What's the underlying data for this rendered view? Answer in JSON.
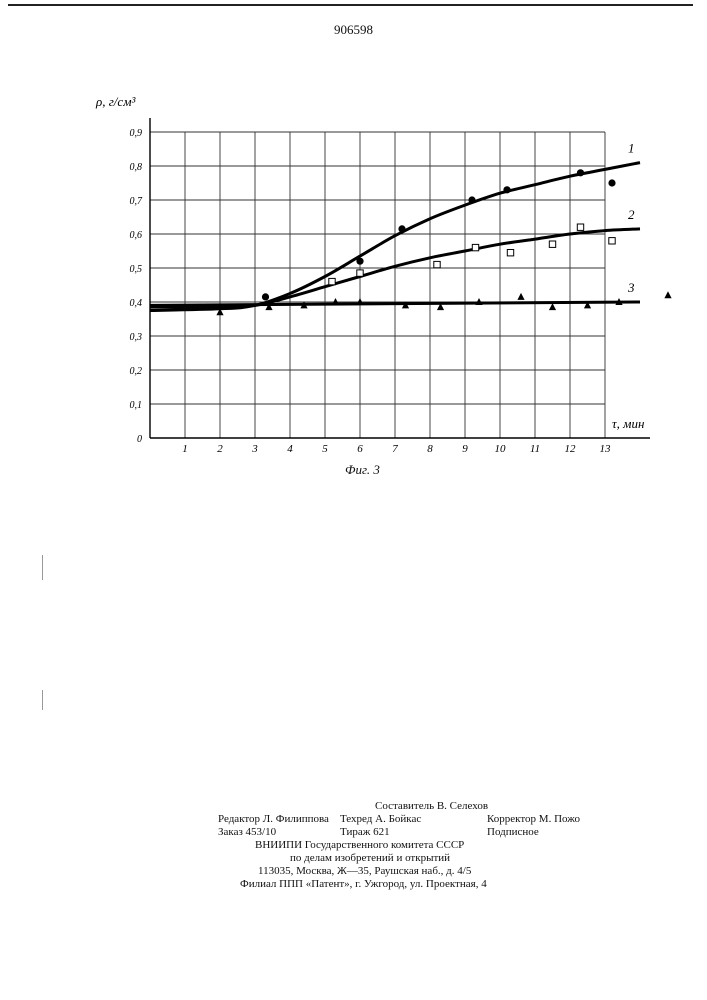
{
  "document": {
    "patent_number": "906598",
    "figure_label": "Фиг. 3"
  },
  "chart_data": {
    "type": "line",
    "title": "",
    "xlabel": "τ, мин",
    "ylabel": "ρ, г/см³",
    "xlim": [
      0,
      14
    ],
    "ylim": [
      0,
      0.9
    ],
    "grid": true,
    "x_ticks": [
      "1",
      "2",
      "3",
      "4",
      "5",
      "6",
      "7",
      "8",
      "9",
      "10",
      "11",
      "12",
      "13"
    ],
    "y_ticks": [
      "0",
      "0,1",
      "0,2",
      "0,3",
      "0,4",
      "0,5",
      "0,6",
      "0,7",
      "0,8",
      "0,9"
    ],
    "series": [
      {
        "name": "1",
        "marker": "filled-circle",
        "points": [
          [
            3.3,
            0.415
          ],
          [
            6.0,
            0.52
          ],
          [
            7.2,
            0.615
          ],
          [
            9.2,
            0.7
          ],
          [
            10.2,
            0.73
          ],
          [
            12.3,
            0.78
          ],
          [
            13.2,
            0.75
          ]
        ],
        "curve": [
          [
            0,
            0.375
          ],
          [
            2,
            0.38
          ],
          [
            3,
            0.39
          ],
          [
            4,
            0.425
          ],
          [
            5,
            0.475
          ],
          [
            6,
            0.535
          ],
          [
            7,
            0.595
          ],
          [
            8,
            0.645
          ],
          [
            9,
            0.685
          ],
          [
            10,
            0.72
          ],
          [
            11,
            0.745
          ],
          [
            12,
            0.77
          ],
          [
            13,
            0.79
          ],
          [
            14,
            0.81
          ]
        ]
      },
      {
        "name": "2",
        "marker": "open-square",
        "points": [
          [
            5.2,
            0.46
          ],
          [
            6.0,
            0.485
          ],
          [
            8.2,
            0.51
          ],
          [
            9.3,
            0.56
          ],
          [
            10.3,
            0.545
          ],
          [
            11.5,
            0.57
          ],
          [
            12.3,
            0.62
          ],
          [
            13.2,
            0.58
          ]
        ],
        "curve": [
          [
            0,
            0.385
          ],
          [
            2,
            0.385
          ],
          [
            3,
            0.39
          ],
          [
            4,
            0.415
          ],
          [
            5,
            0.445
          ],
          [
            6,
            0.475
          ],
          [
            7,
            0.505
          ],
          [
            8,
            0.53
          ],
          [
            9,
            0.55
          ],
          [
            10,
            0.57
          ],
          [
            11,
            0.585
          ],
          [
            12,
            0.6
          ],
          [
            13,
            0.61
          ],
          [
            14,
            0.615
          ]
        ]
      },
      {
        "name": "3",
        "marker": "filled-triangle",
        "points": [
          [
            2.0,
            0.37
          ],
          [
            3.4,
            0.385
          ],
          [
            4.4,
            0.39
          ],
          [
            5.3,
            0.4
          ],
          [
            6.0,
            0.4
          ],
          [
            7.3,
            0.39
          ],
          [
            8.3,
            0.385
          ],
          [
            9.4,
            0.4
          ],
          [
            10.6,
            0.415
          ],
          [
            11.5,
            0.385
          ],
          [
            12.5,
            0.39
          ],
          [
            13.4,
            0.4
          ],
          [
            14.8,
            0.42
          ]
        ],
        "curve": [
          [
            0,
            0.39
          ],
          [
            14,
            0.4
          ]
        ]
      }
    ]
  },
  "imprint": {
    "compiler": "Составитель В. Селехов",
    "editor": "Редактор Л. Филиппова",
    "techred": "Техред А. Бойкас",
    "corrector": "Корректор М. Пожо",
    "order": "Заказ 453/10",
    "circulation": "Тираж 621",
    "subscription": "Подписное",
    "org1": "ВНИИПИ Государственного комитета СССР",
    "org2": "по делам изобретений и открытий",
    "address": "113035, Москва, Ж—35, Раушская наб., д. 4/5",
    "branch": "Филиал ППП «Патент», г. Ужгород, ул. Проектная, 4"
  }
}
